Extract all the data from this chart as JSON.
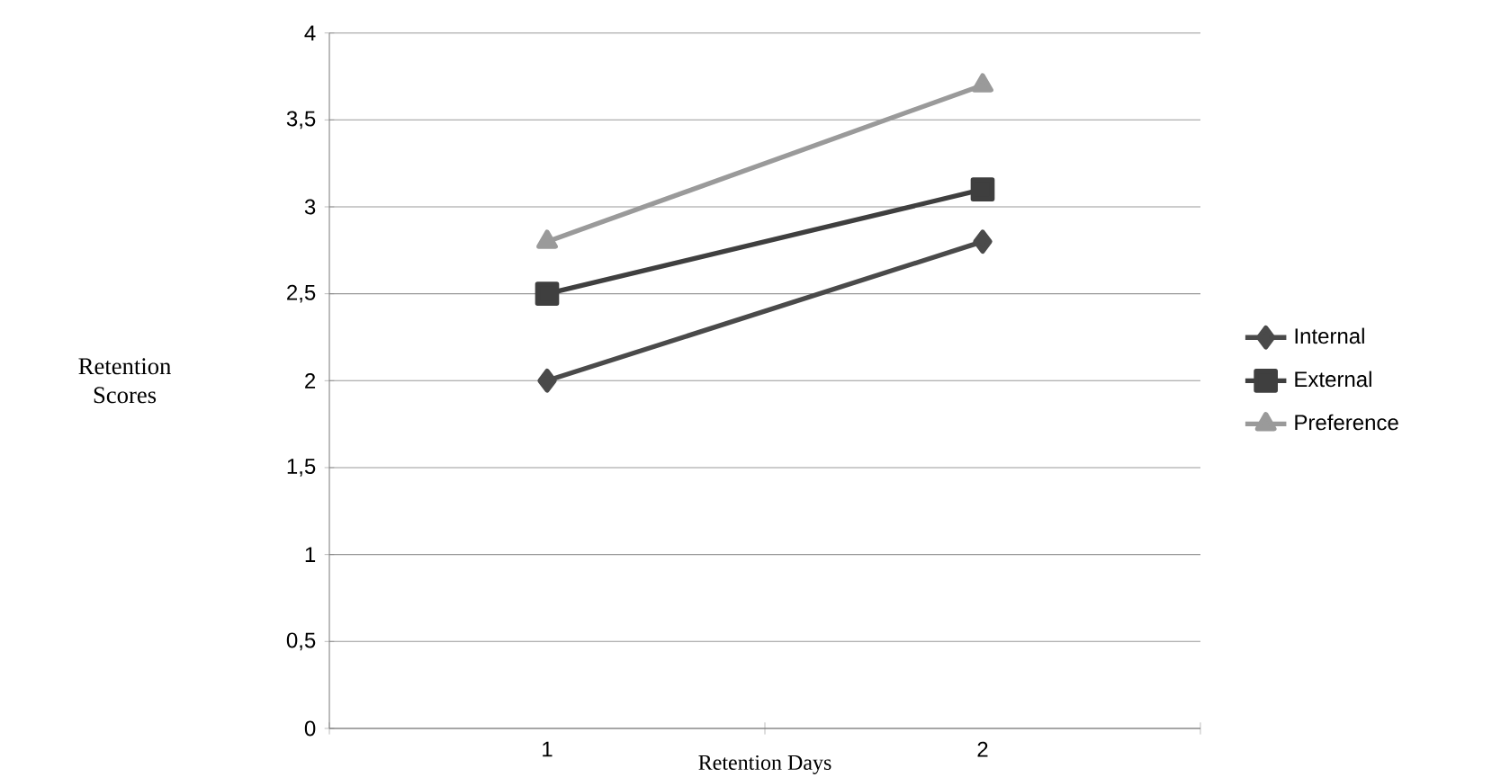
{
  "chart_data": {
    "type": "line",
    "xlabel": "Retention Days",
    "ylabel": "Retention Scores",
    "categories": [
      "1",
      "2"
    ],
    "series": [
      {
        "name": "Internal",
        "color": "#4a4a4a",
        "marker": "diamond",
        "values": [
          2,
          2.8
        ]
      },
      {
        "name": "External",
        "color": "#3f3f3f",
        "marker": "square",
        "values": [
          2.5,
          3.1
        ]
      },
      {
        "name": "Preference",
        "color": "#9a9a9a",
        "marker": "triangle",
        "values": [
          2.8,
          3.7
        ]
      }
    ],
    "ylim": [
      0,
      4
    ],
    "yticks": [
      0,
      {
        "value": 0.5,
        "label": "0,5"
      },
      1,
      {
        "value": 1.5,
        "label": "1,5"
      },
      2,
      {
        "value": 2.5,
        "label": "2,5"
      },
      3,
      {
        "value": 3.5,
        "label": "3,5"
      },
      4
    ],
    "grid": "y",
    "legend": "right"
  }
}
